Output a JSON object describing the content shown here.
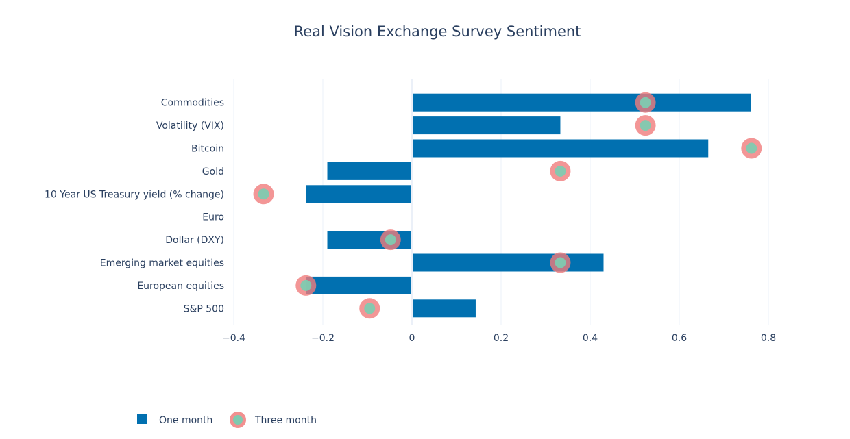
{
  "chart_data": {
    "type": "bar",
    "orientation": "horizontal",
    "title": "Real Vision Exchange Survey Sentiment",
    "categories": [
      "Commodities",
      "Volatility (VIX)",
      "Bitcoin",
      "Gold",
      "10 Year US Treasury yield (% change)",
      "Euro",
      "Dollar (DXY)",
      "Emerging market equities",
      "European equities",
      "S&P 500"
    ],
    "series": [
      {
        "name": "One month",
        "kind": "bar",
        "color": "#0170b0",
        "values": [
          0.76,
          0.333,
          0.665,
          -0.19,
          -0.238,
          0,
          -0.19,
          0.43,
          -0.238,
          0.143
        ]
      },
      {
        "name": "Three month",
        "kind": "marker",
        "marker_fill": "#7fcab0",
        "marker_ring": "#f07c7c",
        "values": [
          0.524,
          0.524,
          0.762,
          0.333,
          -0.333,
          null,
          -0.048,
          0.333,
          -0.238,
          -0.095
        ]
      }
    ],
    "xlim": [
      -0.4,
      0.85
    ],
    "xticks": [
      -0.4,
      -0.2,
      0,
      0.2,
      0.4,
      0.6,
      0.8
    ],
    "xtick_labels": [
      "−0.4",
      "−0.2",
      "0",
      "0.2",
      "0.4",
      "0.6",
      "0.8"
    ],
    "grid": true,
    "legend_placement": "bottom-left"
  }
}
